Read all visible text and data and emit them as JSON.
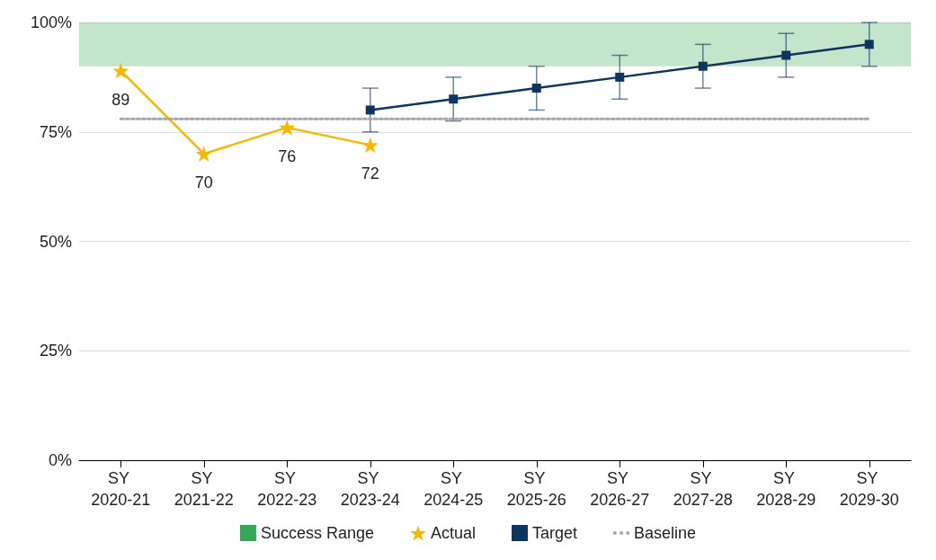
{
  "chart_data": {
    "type": "line",
    "categories": [
      "SY 2020-21",
      "SY 2021-22",
      "SY 2022-23",
      "SY 2023-24",
      "SY 2024-25",
      "SY 2025-26",
      "SY 2026-27",
      "SY 2027-28",
      "SY 2028-29",
      "SY 2029-30"
    ],
    "series": [
      {
        "name": "Actual",
        "color": "#f5b800",
        "marker": "star",
        "values": [
          89,
          70,
          76,
          72,
          null,
          null,
          null,
          null,
          null,
          null
        ],
        "value_labels": [
          "89",
          "70",
          "76",
          "72",
          null,
          null,
          null,
          null,
          null,
          null
        ]
      },
      {
        "name": "Target",
        "color": "#0d3560",
        "marker": "square",
        "values": [
          null,
          null,
          null,
          80,
          82.5,
          85,
          87.5,
          90,
          92.5,
          95
        ],
        "errors": [
          null,
          null,
          null,
          5,
          5,
          5,
          5,
          5,
          5,
          5
        ]
      },
      {
        "name": "Baseline",
        "color": "#a6a6a6",
        "marker": "none",
        "line_style": "dotted",
        "values": [
          78,
          78,
          78,
          78,
          78,
          78,
          78,
          78,
          78,
          78
        ]
      }
    ],
    "bands": [
      {
        "axis": "y",
        "from": 90,
        "to": 100,
        "label": "Success Range",
        "color": "#34a853"
      }
    ],
    "ylim": [
      0,
      100
    ],
    "yticks": [
      {
        "value": 0,
        "label": "0%"
      },
      {
        "value": 25,
        "label": "25%"
      },
      {
        "value": 50,
        "label": "50%"
      },
      {
        "value": 75,
        "label": "75%"
      },
      {
        "value": 100,
        "label": "100%"
      }
    ],
    "grid": "y",
    "legend": "bottom"
  }
}
